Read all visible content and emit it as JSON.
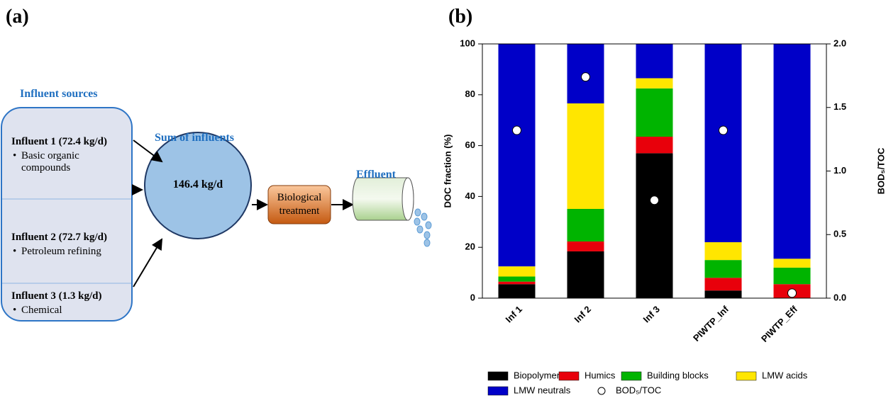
{
  "diagram": {
    "panel_label": "(a)",
    "sources_title": "Influent sources",
    "influents": [
      {
        "name": "Influent 1 (72.4 kg/d)",
        "description": "Basic organic compounds"
      },
      {
        "name": "Influent 2 (72.7 kg/d)",
        "description": "Petroleum refining"
      },
      {
        "name": "Influent 3 (1.3 kg/d)",
        "description": "Chemical"
      }
    ],
    "sum_title": "Sum of influents",
    "sum_value": "146.4 kg/d",
    "treatment": "Biological treatment",
    "effluent": "Effluent"
  },
  "panel_b_label": "(b)",
  "chart_data": {
    "type": "bar",
    "stacked": true,
    "categories": [
      "Inf 1",
      "Inf 2",
      "Inf 3",
      "PIWTP_Inf",
      "PIWTP_Eff"
    ],
    "series": [
      {
        "name": "Biopolymers",
        "color": "#000000",
        "values": [
          5.5,
          18.4,
          57,
          3,
          0
        ]
      },
      {
        "name": "Humics",
        "color": "#e8000b",
        "values": [
          1,
          3.9,
          6.5,
          5,
          5.5
        ]
      },
      {
        "name": "Building blocks",
        "color": "#00b400",
        "values": [
          2,
          12.8,
          19,
          7,
          6.5
        ]
      },
      {
        "name": "LMW acids",
        "color": "#ffe600",
        "values": [
          4,
          41.5,
          4,
          7,
          3.5
        ]
      },
      {
        "name": "LMW neutrals",
        "color": "#0000c8",
        "values": [
          87.5,
          23.4,
          13.5,
          78,
          84.5
        ]
      },
      {
        "name": "BOD₅/TOC",
        "type": "scatter",
        "axis": "y2",
        "color": "#ffffff",
        "values": [
          1.32,
          1.74,
          0.77,
          1.32,
          0.04
        ]
      }
    ],
    "ylabel": "DOC fraction (%)",
    "y2label": "BOD₅/TOC",
    "ylim": [
      0,
      100
    ],
    "yticks": [
      0,
      20,
      40,
      60,
      80,
      100
    ],
    "y2lim": [
      0,
      2
    ],
    "y2ticks": [
      {
        "value": 0,
        "label": "0.0"
      },
      {
        "value": 0.5,
        "label": "0.5"
      },
      {
        "value": 1,
        "label": "1.0"
      },
      {
        "value": 1.5,
        "label": "1.5"
      },
      {
        "value": 2,
        "label": "2.0"
      }
    ],
    "legend": "bottom",
    "grid": false
  }
}
